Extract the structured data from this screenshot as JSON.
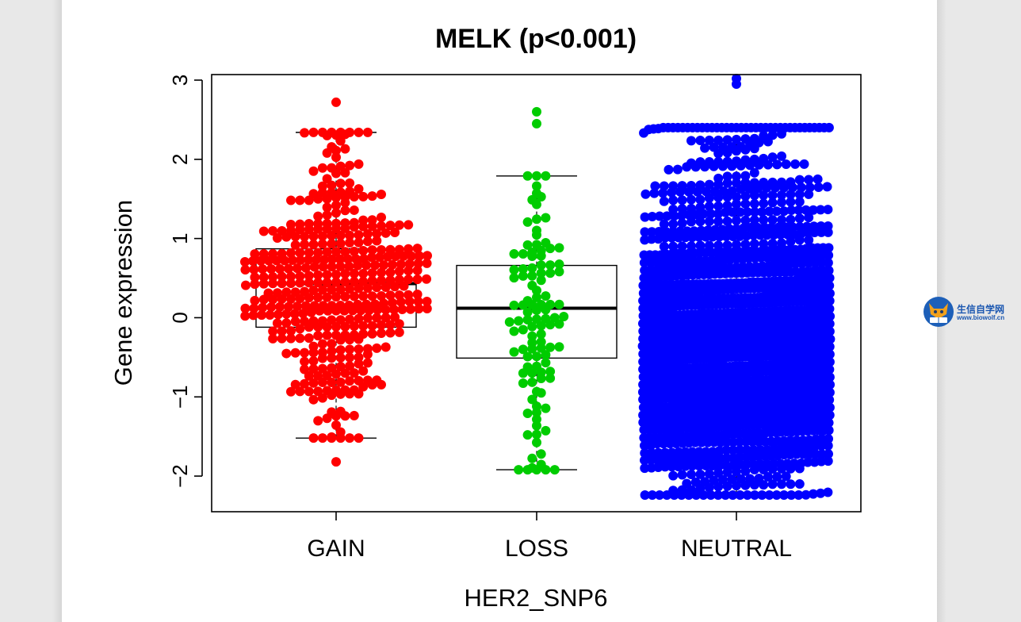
{
  "chart_data": {
    "type": "boxplot-beeswarm",
    "title": "MELK (p<0.001)",
    "xlabel": "HER2_SNP6",
    "ylabel": "Gene expression",
    "ylim": [
      -2.45,
      3.07
    ],
    "yticks": [
      -2,
      -1,
      0,
      1,
      2,
      3
    ],
    "categories": [
      "GAIN",
      "LOSS",
      "NEUTRAL"
    ],
    "colors": [
      "#ff0000",
      "#00cc00",
      "#0000ff"
    ],
    "boxes": [
      {
        "name": "GAIN",
        "min": -1.52,
        "q1": -0.12,
        "median": 0.43,
        "q3": 0.87,
        "max": 2.34,
        "n": 420,
        "extremes": [
          2.72,
          -1.82
        ]
      },
      {
        "name": "LOSS",
        "min": -1.92,
        "q1": -0.51,
        "median": 0.12,
        "q3": 0.66,
        "max": 1.79,
        "n": 110,
        "extremes": [
          2.6,
          2.45
        ]
      },
      {
        "name": "NEUTRAL",
        "min": -2.24,
        "q1": -1.0,
        "median": -0.3,
        "q3": 0.45,
        "max": 2.4,
        "n": 1700,
        "extremes": [
          3.02,
          2.95
        ]
      }
    ]
  },
  "watermark": {
    "name_cn": "生信自学网",
    "url": "www.biowolf.cn",
    "icon": "wolf-logo-icon"
  }
}
